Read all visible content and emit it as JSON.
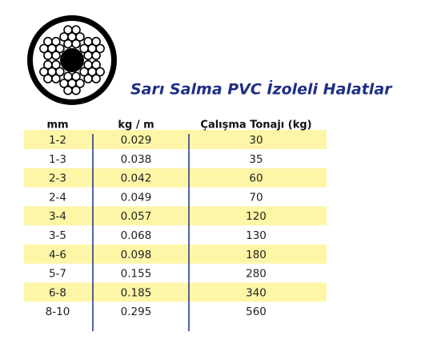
{
  "title": "Sarı Salma PVC İzoleli Halatlar",
  "table": {
    "header": [
      "mm",
      "kg / m",
      "Çalışma Tonajı (kg)"
    ],
    "rows": [
      [
        "1-2",
        "0.029",
        "30"
      ],
      [
        "1-3",
        "0.038",
        "35"
      ],
      [
        "2-3",
        "0.042",
        "60"
      ],
      [
        "2-4",
        "0.049",
        "70"
      ],
      [
        "3-4",
        "0.057",
        "120"
      ],
      [
        "3-5",
        "0.068",
        "130"
      ],
      [
        "4-6",
        "0.098",
        "180"
      ],
      [
        "5-7",
        "0.155",
        "280"
      ],
      [
        "6-8",
        "0.185",
        "340"
      ],
      [
        "8-10",
        "0.295",
        "560"
      ]
    ]
  }
}
